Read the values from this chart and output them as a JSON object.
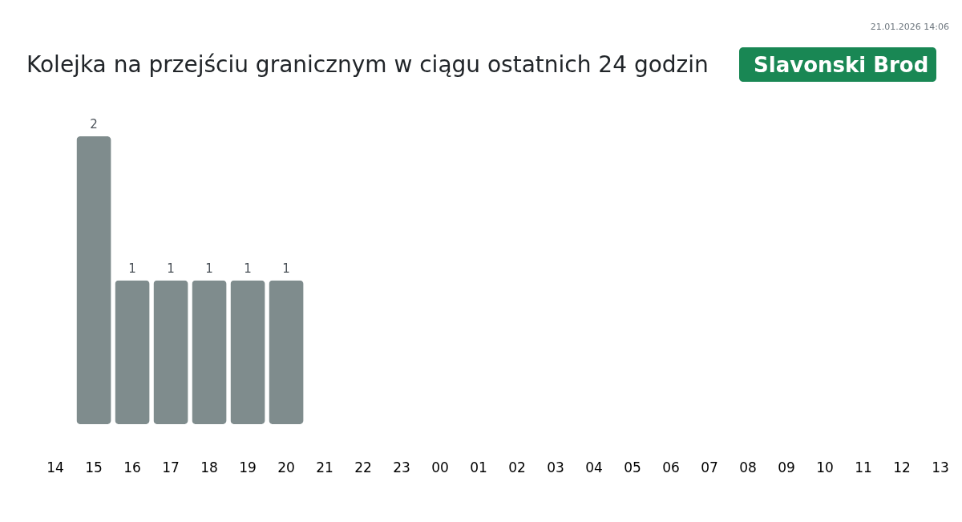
{
  "chart_data": {
    "type": "bar",
    "title": "Kolejka na przejściu granicznym w ciągu ostatnich 24 godzin",
    "subtitle": "Slavonski Brod",
    "annotations": [
      "21.01.2026 14:06"
    ],
    "categories": [
      "14",
      "15",
      "16",
      "17",
      "18",
      "19",
      "20",
      "21",
      "22",
      "23",
      "00",
      "01",
      "02",
      "03",
      "04",
      "05",
      "06",
      "07",
      "08",
      "09",
      "10",
      "11",
      "12",
      "13"
    ],
    "values": [
      null,
      2,
      1,
      1,
      1,
      1,
      1,
      null,
      null,
      null,
      null,
      null,
      null,
      null,
      null,
      null,
      null,
      null,
      null,
      null,
      null,
      null,
      null,
      null
    ],
    "color": "#7f8c8d",
    "data_labels": true,
    "tick_labels": "x"
  }
}
